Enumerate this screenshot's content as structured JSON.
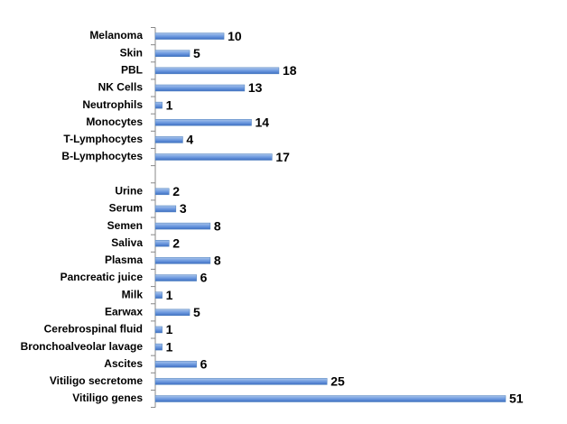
{
  "chart_data": {
    "type": "bar",
    "orientation": "horizontal",
    "categories": [
      "Melanoma",
      "Skin",
      "PBL",
      "NK Cells",
      "Neutrophils",
      "Monocytes",
      "T-Lymphocytes",
      "B-Lymphocytes",
      null,
      "Urine",
      "Serum",
      "Semen",
      "Saliva",
      "Plasma",
      "Pancreatic juice",
      "Milk",
      "Earwax",
      "Cerebrospinal fluid",
      "Bronchoalveolar lavage",
      "Ascites",
      "Vitiligo secretome",
      "Vitiligo genes"
    ],
    "values": [
      10,
      5,
      18,
      13,
      1,
      14,
      4,
      17,
      null,
      2,
      3,
      8,
      2,
      8,
      6,
      1,
      5,
      1,
      1,
      6,
      25,
      51
    ],
    "color": "#4f81bd"
  }
}
